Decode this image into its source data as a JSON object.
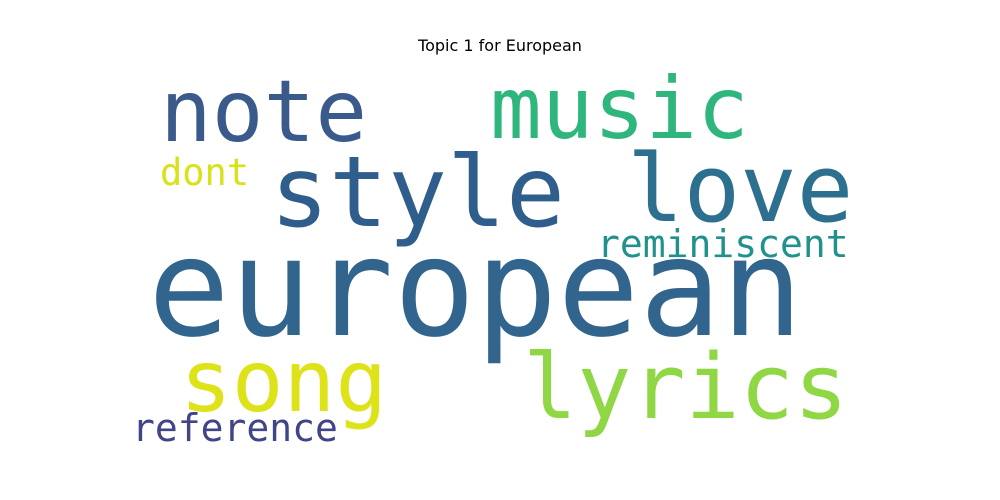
{
  "chart_data": {
    "type": "wordcloud",
    "title": "Topic 1 for European",
    "words": [
      {
        "text": "european",
        "weight": 1.0,
        "color": "#32658e"
      },
      {
        "text": "style",
        "weight": 0.68,
        "color": "#2f5e8c"
      },
      {
        "text": "love",
        "weight": 0.66,
        "color": "#2c6f8e"
      },
      {
        "text": "note",
        "weight": 0.6,
        "color": "#3a5a8c"
      },
      {
        "text": "music",
        "weight": 0.59,
        "color": "#2eb67c"
      },
      {
        "text": "song",
        "weight": 0.58,
        "color": "#dde318"
      },
      {
        "text": "lyrics",
        "weight": 0.59,
        "color": "#8fd744"
      },
      {
        "text": "reminiscent",
        "weight": 0.26,
        "color": "#21918c"
      },
      {
        "text": "reference",
        "weight": 0.26,
        "color": "#414487"
      },
      {
        "text": "dont",
        "weight": 0.24,
        "color": "#d8e219"
      }
    ]
  }
}
